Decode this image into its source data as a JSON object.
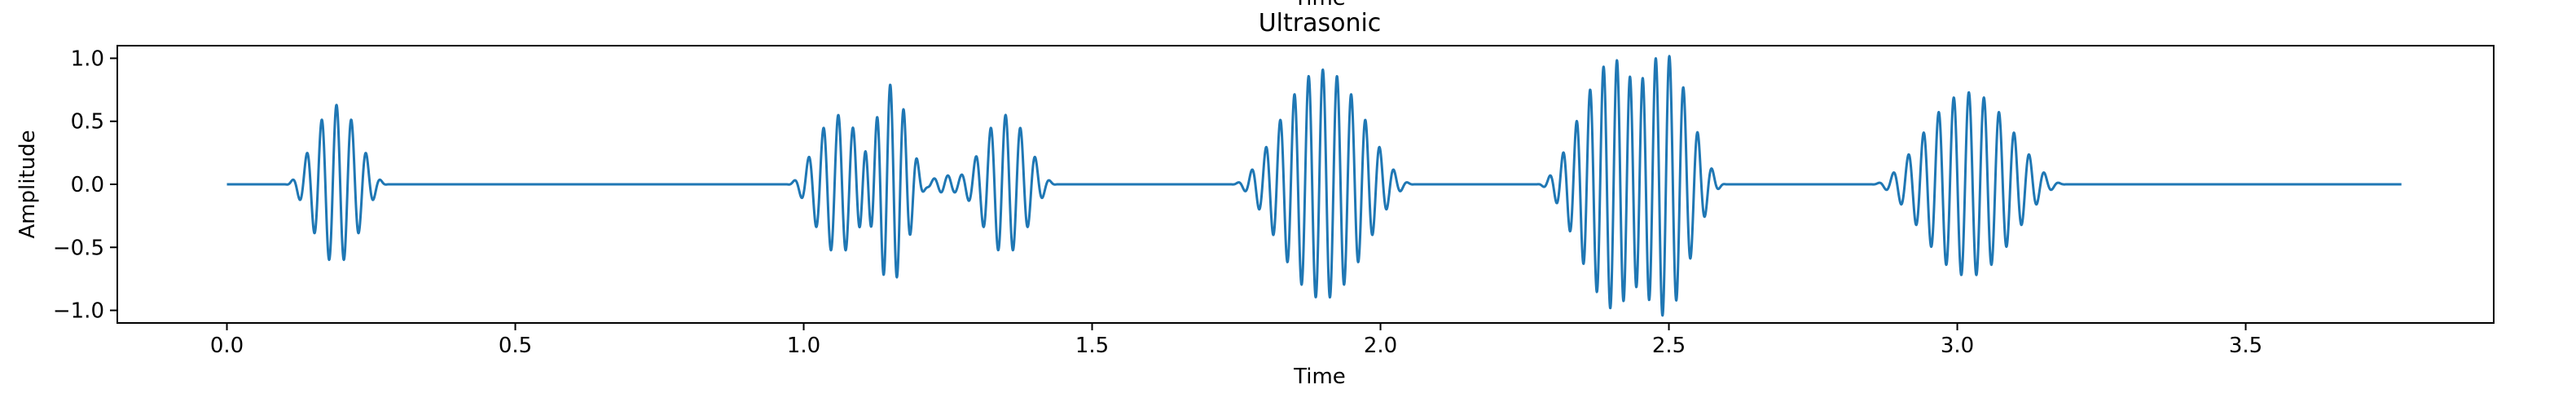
{
  "cropped_heading": "Time",
  "chart_data": {
    "type": "line",
    "title": "Ultrasonic",
    "xlabel": "Time",
    "ylabel": "Amplitude",
    "xlim": [
      -0.19,
      3.93
    ],
    "ylim": [
      -1.1,
      1.1
    ],
    "xticks": [
      0.0,
      0.5,
      1.0,
      1.5,
      2.0,
      2.5,
      3.0,
      3.5
    ],
    "xtick_labels": [
      "0.0",
      "0.5",
      "1.0",
      "1.5",
      "2.0",
      "2.5",
      "3.0",
      "3.5"
    ],
    "yticks": [
      1.0,
      0.5,
      0.0,
      -0.5,
      -1.0
    ],
    "ytick_labels": [
      "1.0",
      "0.5",
      "0.0",
      "−0.5",
      "−1.0"
    ],
    "grid": false,
    "line_color": "#1f77b4",
    "series": [
      {
        "signal_start": 0.0,
        "signal_end": 3.77,
        "bursts": [
          {
            "center": 0.19,
            "half_width": 0.09,
            "peak": 0.63,
            "cycles": 14
          },
          {
            "center": 1.06,
            "half_width": 0.09,
            "peak": 0.55,
            "cycles": 14
          },
          {
            "center": 1.15,
            "half_width": 0.07,
            "peak": 0.79,
            "cycles": 12
          },
          {
            "center": 1.25,
            "half_width": 0.06,
            "peak": 0.07,
            "cycles": 10
          },
          {
            "center": 1.35,
            "half_width": 0.09,
            "peak": 0.55,
            "cycles": 14
          },
          {
            "center": 1.9,
            "half_width": 0.16,
            "peak": 0.91,
            "cycles": 26
          },
          {
            "center": 2.41,
            "half_width": 0.14,
            "peak": 1.0,
            "cycles": 24
          },
          {
            "center": 2.5,
            "half_width": 0.1,
            "peak": 0.82,
            "cycles": 16
          },
          {
            "center": 3.02,
            "half_width": 0.17,
            "peak": 0.73,
            "cycles": 26
          }
        ]
      }
    ]
  }
}
